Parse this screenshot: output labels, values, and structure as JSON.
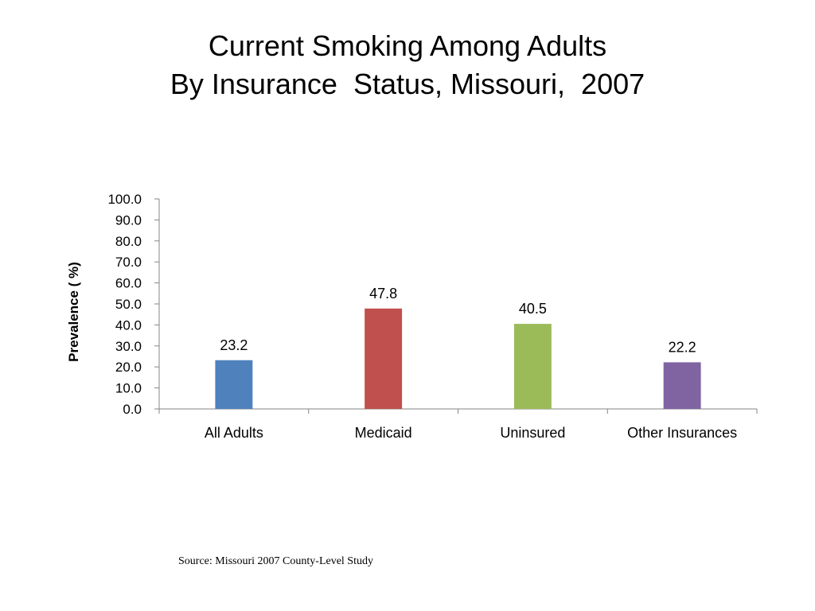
{
  "slide": {
    "title_line1": "Current Smoking Among Adults",
    "title_line2": "By Insurance  Status, Missouri,  2007",
    "source": "Source: Missouri 2007 County-Level Study"
  },
  "chart_data": {
    "type": "bar",
    "title": "",
    "xlabel": "",
    "ylabel": "Prevalence ( %)",
    "ylim": [
      0,
      100
    ],
    "ytick_step": 10,
    "ytick_labels": [
      "0.0",
      "10.0",
      "20.0",
      "30.0",
      "40.0",
      "50.0",
      "60.0",
      "70.0",
      "80.0",
      "90.0",
      "100.0"
    ],
    "grid": false,
    "legend": "none",
    "categories": [
      "All Adults",
      "Medicaid",
      "Uninsured",
      "Other Insurances"
    ],
    "values": [
      23.2,
      47.8,
      40.5,
      22.2
    ],
    "data_labels": [
      "23.2",
      "47.8",
      "40.5",
      "22.2"
    ],
    "colors": [
      "#4F81BD",
      "#C0504D",
      "#9BBB59",
      "#8064A2"
    ]
  }
}
